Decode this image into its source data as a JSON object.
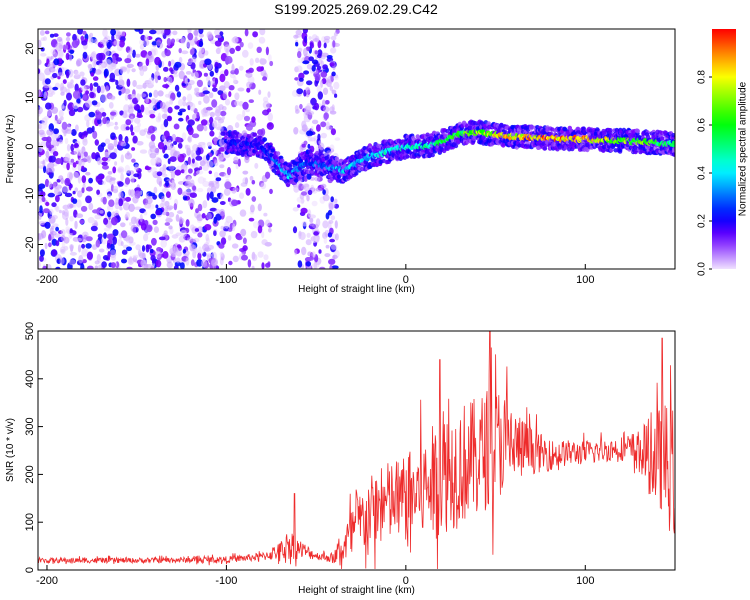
{
  "title": "S199.2025.269.02.29.C42",
  "chart_data": [
    {
      "type": "heatmap",
      "xlabel": "Height of straight line (km)",
      "ylabel": "Frequency (Hz)",
      "xlim": [
        -205,
        150
      ],
      "ylim": [
        -25,
        24
      ],
      "xticks": [
        -200,
        -100,
        0,
        100
      ],
      "yticks": [
        -20,
        -10,
        0,
        10,
        20
      ],
      "colorbar": {
        "label": "Normalized spectral amplitude",
        "range": [
          0,
          1
        ],
        "ticks": [
          "0.0",
          "0.2",
          "0.4",
          "0.6",
          "0.8"
        ],
        "tick_values": [
          0,
          0.2,
          0.4,
          0.6,
          0.8
        ]
      },
      "ridge": {
        "x": [
          -100,
          -80,
          -65,
          -55,
          -45,
          -35,
          -20,
          -10,
          0,
          10,
          20,
          30,
          40,
          50,
          60,
          80,
          100,
          120,
          140,
          150
        ],
        "frequency": [
          1,
          0,
          -6,
          -3,
          -4,
          -5,
          -2,
          -1,
          0,
          0,
          1,
          2.5,
          3,
          2.5,
          2,
          1.7,
          1.5,
          1.2,
          0.8,
          0.5
        ],
        "peak_amplitude": [
          0.25,
          0.25,
          0.45,
          0.3,
          0.35,
          0.45,
          0.45,
          0.5,
          0.5,
          0.55,
          0.65,
          0.7,
          0.8,
          0.9,
          0.95,
          1.0,
          0.95,
          0.8,
          0.7,
          0.6
        ]
      },
      "noise_regions": [
        {
          "x": [
            -205,
            -100
          ],
          "frequency": [
            -25,
            24
          ],
          "amplitude": 0.15
        },
        {
          "x": [
            -100,
            -75
          ],
          "frequency": [
            -25,
            24
          ],
          "amplitude": 0.06
        },
        {
          "x": [
            -62,
            -38
          ],
          "frequency": [
            -25,
            24
          ],
          "amplitude": 0.15
        }
      ]
    },
    {
      "type": "line",
      "xlabel": "Height of straight line (km)",
      "ylabel": "SNR (10 * v/v)",
      "xlim": [
        -205,
        150
      ],
      "ylim": [
        0,
        500
      ],
      "xticks": [
        -200,
        -100,
        0,
        100
      ],
      "yticks": [
        0,
        100,
        200,
        300,
        400,
        500
      ],
      "color": "#ee2b2b",
      "envelope": {
        "x": [
          -205,
          -150,
          -100,
          -80,
          -70,
          -65,
          -60,
          -50,
          -40,
          -35,
          -30,
          -20,
          -10,
          0,
          10,
          20,
          30,
          40,
          47,
          55,
          60,
          70,
          80,
          90,
          100,
          110,
          120,
          130,
          135,
          140,
          145,
          150
        ],
        "baseline": [
          20,
          20,
          22,
          28,
          40,
          55,
          45,
          30,
          25,
          45,
          80,
          120,
          140,
          150,
          170,
          200,
          220,
          240,
          260,
          270,
          260,
          250,
          240,
          245,
          245,
          250,
          255,
          250,
          240,
          230,
          220,
          200
        ],
        "spread": [
          10,
          10,
          12,
          15,
          35,
          60,
          40,
          15,
          20,
          60,
          110,
          140,
          160,
          170,
          200,
          230,
          240,
          220,
          240,
          200,
          150,
          90,
          60,
          50,
          45,
          45,
          45,
          80,
          140,
          200,
          240,
          250
        ]
      },
      "peaks": [
        {
          "x": 19,
          "y": 440
        },
        {
          "x": 47,
          "y": 500
        },
        {
          "x": 143,
          "y": 485
        },
        {
          "x": -62,
          "y": 160
        }
      ]
    }
  ]
}
